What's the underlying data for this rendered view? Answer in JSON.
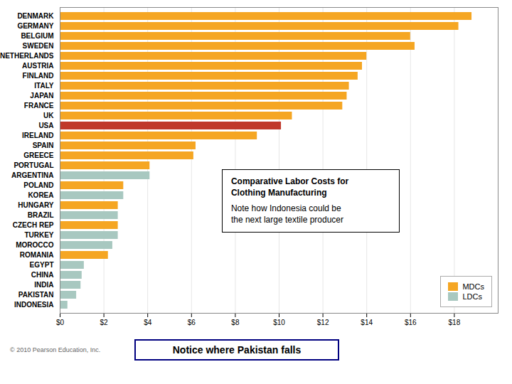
{
  "chart_data": {
    "type": "bar",
    "orientation": "horizontal",
    "categories": [
      "DENMARK",
      "GERMANY",
      "BELGIUM",
      "SWEDEN",
      "NETHERLANDS",
      "AUSTRIA",
      "FINLAND",
      "ITALY",
      "JAPAN",
      "FRANCE",
      "UK",
      "USA",
      "IRELAND",
      "SPAIN",
      "GREECE",
      "PORTUGAL",
      "ARGENTINA",
      "POLAND",
      "KOREA",
      "HUNGARY",
      "BRAZIL",
      "CZECH REP",
      "TURKEY",
      "MOROCCO",
      "ROMANIA",
      "EGYPT",
      "CHINA",
      "INDIA",
      "PAKISTAN",
      "INDONESIA"
    ],
    "values": [
      18.8,
      18.2,
      16.0,
      16.2,
      14.0,
      13.8,
      13.6,
      13.2,
      13.1,
      12.9,
      10.6,
      10.1,
      9.0,
      6.2,
      6.1,
      4.1,
      4.1,
      2.9,
      2.9,
      2.65,
      2.65,
      2.65,
      2.65,
      2.4,
      2.2,
      1.1,
      1.0,
      0.95,
      0.75,
      0.35
    ],
    "colors": [
      "#F5A623",
      "#F5A623",
      "#F5A623",
      "#F5A623",
      "#F5A623",
      "#F5A623",
      "#F5A623",
      "#F5A623",
      "#F5A623",
      "#F5A623",
      "#F5A623",
      "#C0392B",
      "#F5A623",
      "#F5A623",
      "#F5A623",
      "#F5A623",
      "#A8C8C0",
      "#F5A623",
      "#A8C8C0",
      "#F5A623",
      "#A8C8C0",
      "#F5A623",
      "#A8C8C0",
      "#A8C8C0",
      "#F5A623",
      "#A8C8C0",
      "#A8C8C0",
      "#A8C8C0",
      "#A8C8C0",
      "#A8C8C0"
    ],
    "xlim": [
      0,
      20
    ],
    "xticks": [
      {
        "value": 0,
        "label": "$0"
      },
      {
        "value": 2,
        "label": "$2"
      },
      {
        "value": 4,
        "label": "$4"
      },
      {
        "value": 6,
        "label": "$6"
      },
      {
        "value": 8,
        "label": "$8"
      },
      {
        "value": 10,
        "label": "$10"
      },
      {
        "value": 12,
        "label": "$12"
      },
      {
        "value": 14,
        "label": "$14"
      },
      {
        "value": 16,
        "label": "$16"
      },
      {
        "value": 18,
        "label": "$18"
      }
    ],
    "grid": true,
    "legend": "lower right",
    "legend_entries": [
      {
        "name": "MDCs",
        "color": "#F5A623"
      },
      {
        "name": "LDCs",
        "color": "#A8C8C0"
      }
    ],
    "annotations": [
      "Comparative Labor Costs for\nClothing Manufacturing",
      "Note how Indonesia could be\nthe next large textile producer",
      "Notice where Pakistan falls"
    ],
    "caption": "© 2010 Pearson Education, Inc."
  }
}
